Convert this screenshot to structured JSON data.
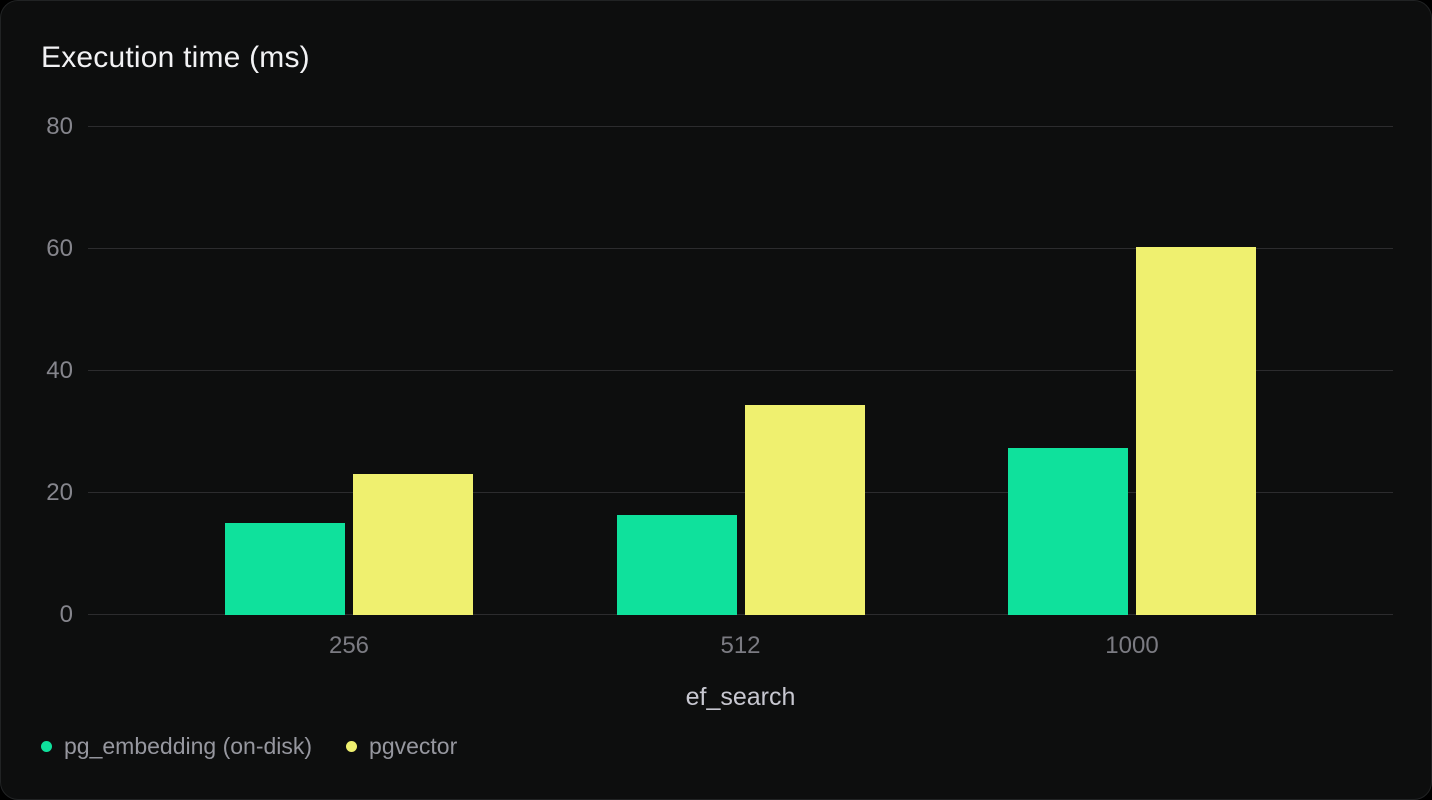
{
  "chart_data": {
    "type": "bar",
    "title": "Execution time (ms)",
    "xlabel": "ef_search",
    "ylabel": "",
    "categories": [
      "256",
      "512",
      "1000"
    ],
    "series": [
      {
        "name": "pg_embedding (on-disk)",
        "color": "#0fe19c",
        "values": [
          15.1,
          16.4,
          27.4
        ]
      },
      {
        "name": "pgvector",
        "color": "#eff06f",
        "values": [
          23.1,
          34.5,
          60.4
        ]
      }
    ],
    "ylim": [
      0,
      80
    ],
    "yticks": [
      0,
      20,
      40,
      60,
      80
    ],
    "grid": true,
    "legend_position": "bottom-left"
  },
  "colors": {
    "page_background": "#000000",
    "card_background": "#0d0e0e",
    "card_border": "#212324",
    "grid": "#2c2c2e",
    "title_text": "#f2f2f4",
    "tick_text": "#85858c",
    "x_axis_label_text": "#c7c7d0",
    "legend_text": "#96979f"
  }
}
